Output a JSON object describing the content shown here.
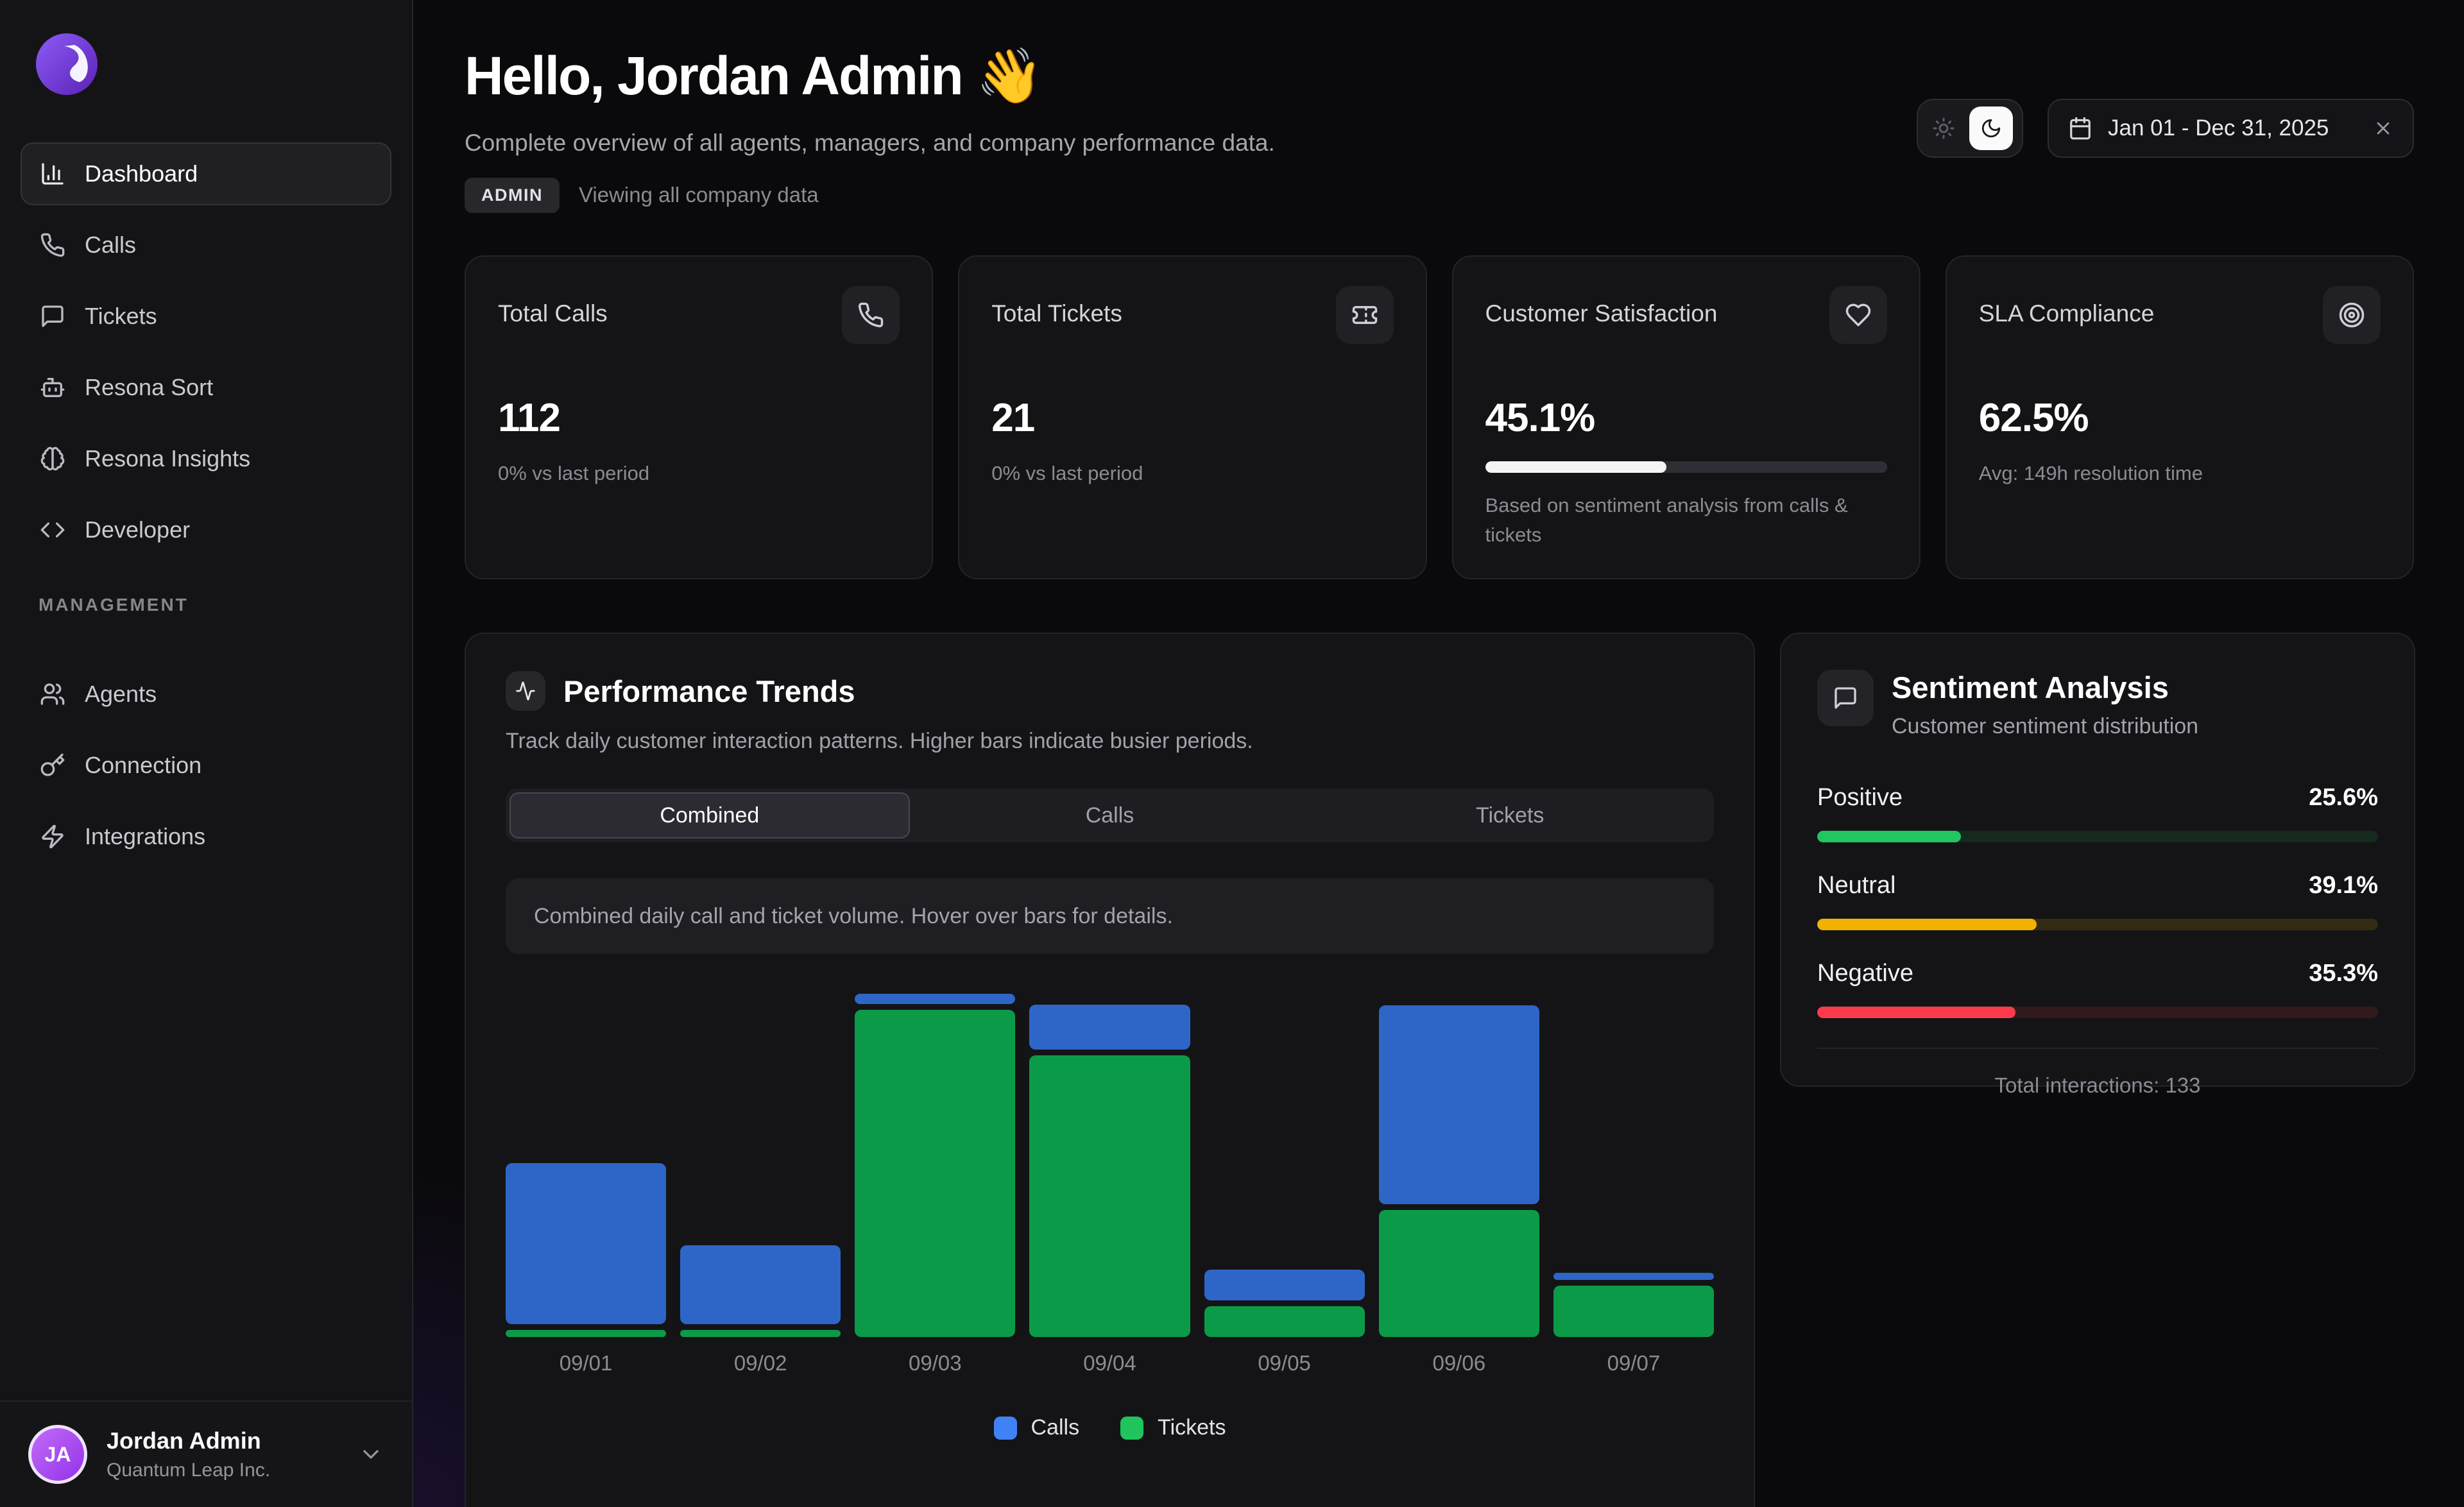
{
  "sidebar": {
    "nav": [
      {
        "label": "Dashboard",
        "icon": "chart-column-icon",
        "active": true
      },
      {
        "label": "Calls",
        "icon": "phone-icon",
        "active": false
      },
      {
        "label": "Tickets",
        "icon": "message-square-icon",
        "active": false
      },
      {
        "label": "Resona Sort",
        "icon": "bot-icon",
        "active": false
      },
      {
        "label": "Resona Insights",
        "icon": "brain-icon",
        "active": false
      },
      {
        "label": "Developer",
        "icon": "code-icon",
        "active": false
      }
    ],
    "section_label": "MANAGEMENT",
    "management": [
      {
        "label": "Agents",
        "icon": "users-icon",
        "active": false
      },
      {
        "label": "Connection",
        "icon": "key-icon",
        "active": false
      },
      {
        "label": "Integrations",
        "icon": "zap-icon",
        "active": false
      }
    ],
    "user": {
      "initials": "JA",
      "name": "Jordan Admin",
      "company": "Quantum Leap Inc."
    }
  },
  "header": {
    "title": "Hello, Jordan Admin",
    "wave_emoji": "👋",
    "subtitle": "Complete overview of all agents, managers, and company performance data.",
    "role_badge": "ADMIN",
    "role_note": "Viewing all company data"
  },
  "controls": {
    "theme": {
      "mode": "dark",
      "icons": [
        "sun-icon",
        "moon-icon"
      ]
    },
    "date_range": "Jan 01 - Dec 31, 2025"
  },
  "stats": [
    {
      "title": "Total Calls",
      "icon": "phone-icon",
      "value": "112",
      "caption": "0% vs last period",
      "progress_pct": null
    },
    {
      "title": "Total Tickets",
      "icon": "ticket-icon",
      "value": "21",
      "caption": "0% vs last period",
      "progress_pct": null
    },
    {
      "title": "Customer Satisfaction",
      "icon": "heart-icon",
      "value": "45.1%",
      "caption": "Based on sentiment analysis from calls & tickets",
      "progress_pct": 45.1
    },
    {
      "title": "SLA Compliance",
      "icon": "target-icon",
      "value": "62.5%",
      "caption": "Avg: 149h resolution time",
      "progress_pct": null
    }
  ],
  "performance": {
    "title": "Performance Trends",
    "icon": "activity-icon",
    "subtitle": "Track daily customer interaction patterns. Higher bars indicate busier periods.",
    "tabs": [
      "Combined",
      "Calls",
      "Tickets"
    ],
    "active_tab": "Combined",
    "info": "Combined daily call and ticket volume. Hover over bars for details.",
    "legend": [
      {
        "label": "Calls",
        "color": "#3f82f6"
      },
      {
        "label": "Tickets",
        "color": "#1fc45c"
      }
    ]
  },
  "chart_data": {
    "type": "stacked_bar",
    "title": "Combined daily call and ticket volume",
    "categories": [
      "09/01",
      "09/02",
      "09/03",
      "09/04",
      "09/05",
      "09/06",
      "09/07"
    ],
    "series": [
      {
        "name": "Calls",
        "color": "#2e66c7",
        "values": [
          47,
          23,
          3,
          13,
          9,
          58,
          2
        ]
      },
      {
        "name": "Tickets",
        "color": "#0b9b48",
        "values": [
          2,
          2,
          96,
          82,
          9,
          37,
          15
        ]
      }
    ],
    "stack_order_bottom_to_top": [
      "Tickets",
      "Calls"
    ],
    "units": "relative height, % of tallest bar (no numeric axis shown)",
    "ylim": [
      0,
      100
    ],
    "grid": false,
    "legend_position": "bottom"
  },
  "sentiment": {
    "title": "Sentiment Analysis",
    "icon": "message-square-icon",
    "subtitle": "Customer sentiment distribution",
    "rows": [
      {
        "label": "Positive",
        "pct": "25.6%",
        "value": 25.6,
        "color": "#22c55e",
        "track": "rgba(34,197,94,0.12)"
      },
      {
        "label": "Neutral",
        "pct": "39.1%",
        "value": 39.1,
        "color": "#f0b100",
        "track": "rgba(240,177,0,0.14)"
      },
      {
        "label": "Negative",
        "pct": "35.3%",
        "value": 35.3,
        "color": "#fb3b4b",
        "track": "rgba(251,59,75,0.13)"
      }
    ],
    "total_label": "Total interactions: 133"
  }
}
